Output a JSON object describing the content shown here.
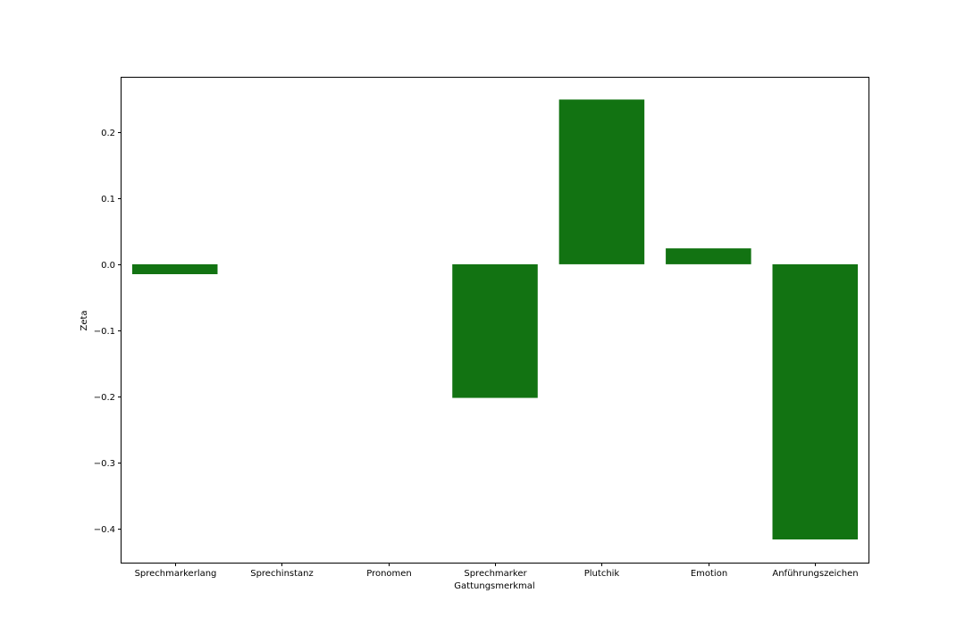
{
  "chart_data": {
    "type": "bar",
    "title": "",
    "xlabel": "Gattungsmerkmal",
    "ylabel": "Zeta",
    "categories": [
      "Sprechmarkerlang",
      "Sprechinstanz",
      "Pronomen",
      "Sprechmarker",
      "Plutchik",
      "Emotion",
      "Anführungszeichen"
    ],
    "values": [
      -0.015,
      0.0,
      0.0,
      -0.202,
      0.249,
      0.024,
      -0.416
    ],
    "ylim": [
      -0.451,
      0.282
    ],
    "yticks": [
      0.2,
      0.1,
      0.0,
      -0.1,
      -0.2,
      -0.3,
      -0.4
    ],
    "ytick_labels": [
      "0.2",
      "0.1",
      "0.0",
      "−0.1",
      "−0.2",
      "−0.3",
      "−0.4"
    ],
    "bar_color": "#127312",
    "grid": false,
    "legend": "none"
  }
}
